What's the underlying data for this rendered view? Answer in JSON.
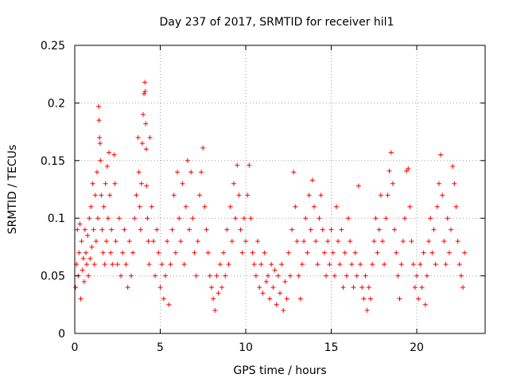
{
  "chart_data": {
    "type": "scatter",
    "title": "Day 237 of 2017, SRMTID for receiver hil1",
    "xlabel": "GPS time / hours",
    "ylabel": "SRMTID / TECUs",
    "xlim": [
      0,
      24
    ],
    "ylim": [
      0,
      0.25
    ],
    "x_ticks": [
      0,
      5,
      10,
      15,
      20
    ],
    "x_tick_labels": [
      "0",
      "5",
      "10",
      "15",
      "20"
    ],
    "y_ticks": [
      0,
      0.05,
      0.1,
      0.15,
      0.2,
      0.25
    ],
    "y_tick_labels": [
      "0",
      "0.05",
      "0.1",
      "0.15",
      "0.2",
      "0.25"
    ],
    "grid": true,
    "marker": "+",
    "color": "#ff0000",
    "series": [
      {
        "name": "SRMTID",
        "points": [
          [
            0.05,
            0.04
          ],
          [
            0.1,
            0.06
          ],
          [
            0.15,
            0.09
          ],
          [
            0.2,
            0.05
          ],
          [
            0.25,
            0.07
          ],
          [
            0.3,
            0.095
          ],
          [
            0.35,
            0.03
          ],
          [
            0.4,
            0.08
          ],
          [
            0.45,
            0.055
          ],
          [
            0.5,
            0.065
          ],
          [
            0.55,
            0.045
          ],
          [
            0.6,
            0.09
          ],
          [
            0.65,
            0.07
          ],
          [
            0.7,
            0.06
          ],
          [
            0.75,
            0.085
          ],
          [
            0.8,
            0.05
          ],
          [
            0.85,
            0.1
          ],
          [
            0.9,
            0.065
          ],
          [
            0.95,
            0.11
          ],
          [
            1.0,
            0.075
          ],
          [
            1.05,
            0.13
          ],
          [
            1.1,
            0.09
          ],
          [
            1.15,
            0.06
          ],
          [
            1.2,
            0.12
          ],
          [
            1.25,
            0.08
          ],
          [
            1.3,
            0.14
          ],
          [
            1.35,
            0.1
          ],
          [
            1.4,
            0.197
          ],
          [
            1.42,
            0.185
          ],
          [
            1.45,
            0.17
          ],
          [
            1.48,
            0.165
          ],
          [
            1.5,
            0.15
          ],
          [
            1.55,
            0.12
          ],
          [
            1.6,
            0.09
          ],
          [
            1.65,
            0.07
          ],
          [
            1.7,
            0.11
          ],
          [
            1.75,
            0.06
          ],
          [
            1.8,
            0.13
          ],
          [
            1.85,
            0.08
          ],
          [
            1.9,
            0.145
          ],
          [
            1.95,
            0.1
          ],
          [
            2.0,
            0.157
          ],
          [
            2.05,
            0.12
          ],
          [
            2.1,
            0.07
          ],
          [
            2.15,
            0.09
          ],
          [
            2.2,
            0.06
          ],
          [
            2.3,
            0.155
          ],
          [
            2.35,
            0.13
          ],
          [
            2.4,
            0.08
          ],
          [
            2.5,
            0.06
          ],
          [
            2.6,
            0.1
          ],
          [
            2.7,
            0.05
          ],
          [
            2.8,
            0.07
          ],
          [
            2.9,
            0.09
          ],
          [
            3.0,
            0.06
          ],
          [
            3.1,
            0.04
          ],
          [
            3.2,
            0.08
          ],
          [
            3.3,
            0.05
          ],
          [
            3.4,
            0.07
          ],
          [
            3.5,
            0.1
          ],
          [
            3.6,
            0.12
          ],
          [
            3.7,
            0.17
          ],
          [
            3.75,
            0.14
          ],
          [
            3.8,
            0.11
          ],
          [
            3.85,
            0.09
          ],
          [
            3.9,
            0.13
          ],
          [
            3.95,
            0.165
          ],
          [
            4.0,
            0.19
          ],
          [
            4.05,
            0.208
          ],
          [
            4.1,
            0.218
          ],
          [
            4.12,
            0.21
          ],
          [
            4.15,
            0.182
          ],
          [
            4.18,
            0.16
          ],
          [
            4.2,
            0.128
          ],
          [
            4.25,
            0.1
          ],
          [
            4.3,
            0.08
          ],
          [
            4.35,
            0.06
          ],
          [
            4.4,
            0.17
          ],
          [
            4.5,
            0.11
          ],
          [
            4.6,
            0.08
          ],
          [
            4.7,
            0.05
          ],
          [
            4.8,
            0.09
          ],
          [
            4.9,
            0.07
          ],
          [
            5.0,
            0.04
          ],
          [
            5.1,
            0.06
          ],
          [
            5.2,
            0.03
          ],
          [
            5.3,
            0.05
          ],
          [
            5.4,
            0.08
          ],
          [
            5.5,
            0.025
          ],
          [
            5.6,
            0.06
          ],
          [
            5.7,
            0.09
          ],
          [
            5.8,
            0.12
          ],
          [
            5.9,
            0.07
          ],
          [
            6.0,
            0.14
          ],
          [
            6.1,
            0.1
          ],
          [
            6.2,
            0.08
          ],
          [
            6.3,
            0.13
          ],
          [
            6.4,
            0.06
          ],
          [
            6.5,
            0.11
          ],
          [
            6.6,
            0.15
          ],
          [
            6.7,
            0.09
          ],
          [
            6.8,
            0.14
          ],
          [
            6.9,
            0.1
          ],
          [
            7.0,
            0.07
          ],
          [
            7.1,
            0.05
          ],
          [
            7.2,
            0.08
          ],
          [
            7.3,
            0.12
          ],
          [
            7.4,
            0.14
          ],
          [
            7.5,
            0.161
          ],
          [
            7.6,
            0.11
          ],
          [
            7.7,
            0.09
          ],
          [
            7.8,
            0.07
          ],
          [
            7.9,
            0.05
          ],
          [
            8.0,
            0.04
          ],
          [
            8.1,
            0.03
          ],
          [
            8.2,
            0.02
          ],
          [
            8.3,
            0.05
          ],
          [
            8.4,
            0.035
          ],
          [
            8.5,
            0.06
          ],
          [
            8.6,
            0.04
          ],
          [
            8.7,
            0.07
          ],
          [
            8.8,
            0.05
          ],
          [
            8.9,
            0.09
          ],
          [
            9.0,
            0.06
          ],
          [
            9.1,
            0.11
          ],
          [
            9.2,
            0.08
          ],
          [
            9.3,
            0.13
          ],
          [
            9.4,
            0.1
          ],
          [
            9.5,
            0.146
          ],
          [
            9.6,
            0.12
          ],
          [
            9.7,
            0.09
          ],
          [
            9.8,
            0.07
          ],
          [
            9.9,
            0.1
          ],
          [
            10.0,
            0.08
          ],
          [
            10.1,
            0.12
          ],
          [
            10.2,
            0.146
          ],
          [
            10.3,
            0.1
          ],
          [
            10.4,
            0.07
          ],
          [
            10.5,
            0.06
          ],
          [
            10.6,
            0.05
          ],
          [
            10.7,
            0.08
          ],
          [
            10.8,
            0.04
          ],
          [
            10.9,
            0.06
          ],
          [
            11.0,
            0.035
          ],
          [
            11.1,
            0.07
          ],
          [
            11.2,
            0.045
          ],
          [
            11.3,
            0.05
          ],
          [
            11.4,
            0.03
          ],
          [
            11.5,
            0.06
          ],
          [
            11.6,
            0.04
          ],
          [
            11.7,
            0.055
          ],
          [
            11.8,
            0.025
          ],
          [
            11.9,
            0.05
          ],
          [
            12.0,
            0.035
          ],
          [
            12.1,
            0.06
          ],
          [
            12.2,
            0.02
          ],
          [
            12.3,
            0.045
          ],
          [
            12.4,
            0.03
          ],
          [
            12.5,
            0.07
          ],
          [
            12.6,
            0.05
          ],
          [
            12.7,
            0.09
          ],
          [
            12.8,
            0.14
          ],
          [
            12.9,
            0.11
          ],
          [
            13.0,
            0.08
          ],
          [
            13.1,
            0.05
          ],
          [
            13.2,
            0.03
          ],
          [
            13.3,
            0.06
          ],
          [
            13.4,
            0.08
          ],
          [
            13.5,
            0.1
          ],
          [
            13.6,
            0.07
          ],
          [
            13.7,
            0.12
          ],
          [
            13.8,
            0.09
          ],
          [
            13.9,
            0.133
          ],
          [
            14.0,
            0.11
          ],
          [
            14.1,
            0.08
          ],
          [
            14.2,
            0.06
          ],
          [
            14.3,
            0.1
          ],
          [
            14.4,
            0.12
          ],
          [
            14.5,
            0.09
          ],
          [
            14.6,
            0.07
          ],
          [
            14.7,
            0.05
          ],
          [
            14.8,
            0.08
          ],
          [
            14.9,
            0.06
          ],
          [
            15.0,
            0.09
          ],
          [
            15.1,
            0.07
          ],
          [
            15.2,
            0.05
          ],
          [
            15.3,
            0.11
          ],
          [
            15.4,
            0.08
          ],
          [
            15.5,
            0.06
          ],
          [
            15.6,
            0.09
          ],
          [
            15.7,
            0.04
          ],
          [
            15.8,
            0.07
          ],
          [
            15.9,
            0.05
          ],
          [
            16.0,
            0.1
          ],
          [
            16.1,
            0.08
          ],
          [
            16.2,
            0.06
          ],
          [
            16.3,
            0.04
          ],
          [
            16.4,
            0.07
          ],
          [
            16.5,
            0.05
          ],
          [
            16.6,
            0.128
          ],
          [
            16.7,
            0.06
          ],
          [
            16.8,
            0.04
          ],
          [
            16.9,
            0.03
          ],
          [
            17.0,
            0.05
          ],
          [
            17.1,
            0.02
          ],
          [
            17.2,
            0.04
          ],
          [
            17.3,
            0.03
          ],
          [
            17.4,
            0.06
          ],
          [
            17.5,
            0.08
          ],
          [
            17.6,
            0.1
          ],
          [
            17.7,
            0.07
          ],
          [
            17.8,
            0.09
          ],
          [
            17.9,
            0.12
          ],
          [
            18.0,
            0.08
          ],
          [
            18.1,
            0.06
          ],
          [
            18.2,
            0.1
          ],
          [
            18.3,
            0.12
          ],
          [
            18.4,
            0.141
          ],
          [
            18.5,
            0.157
          ],
          [
            18.6,
            0.13
          ],
          [
            18.7,
            0.09
          ],
          [
            18.8,
            0.07
          ],
          [
            18.9,
            0.05
          ],
          [
            19.0,
            0.03
          ],
          [
            19.1,
            0.06
          ],
          [
            19.2,
            0.08
          ],
          [
            19.3,
            0.1
          ],
          [
            19.4,
            0.141
          ],
          [
            19.5,
            0.143
          ],
          [
            19.6,
            0.11
          ],
          [
            19.7,
            0.08
          ],
          [
            19.8,
            0.06
          ],
          [
            19.9,
            0.04
          ],
          [
            20.0,
            0.05
          ],
          [
            20.1,
            0.03
          ],
          [
            20.2,
            0.06
          ],
          [
            20.3,
            0.04
          ],
          [
            20.4,
            0.07
          ],
          [
            20.5,
            0.025
          ],
          [
            20.6,
            0.05
          ],
          [
            20.7,
            0.08
          ],
          [
            20.8,
            0.1
          ],
          [
            20.9,
            0.07
          ],
          [
            21.0,
            0.09
          ],
          [
            21.1,
            0.06
          ],
          [
            21.2,
            0.11
          ],
          [
            21.3,
            0.13
          ],
          [
            21.4,
            0.155
          ],
          [
            21.5,
            0.12
          ],
          [
            21.6,
            0.08
          ],
          [
            21.7,
            0.06
          ],
          [
            21.8,
            0.1
          ],
          [
            21.9,
            0.07
          ],
          [
            22.0,
            0.09
          ],
          [
            22.1,
            0.145
          ],
          [
            22.2,
            0.13
          ],
          [
            22.3,
            0.11
          ],
          [
            22.4,
            0.08
          ],
          [
            22.5,
            0.06
          ],
          [
            22.6,
            0.05
          ],
          [
            22.7,
            0.04
          ],
          [
            22.8,
            0.07
          ]
        ]
      }
    ]
  }
}
